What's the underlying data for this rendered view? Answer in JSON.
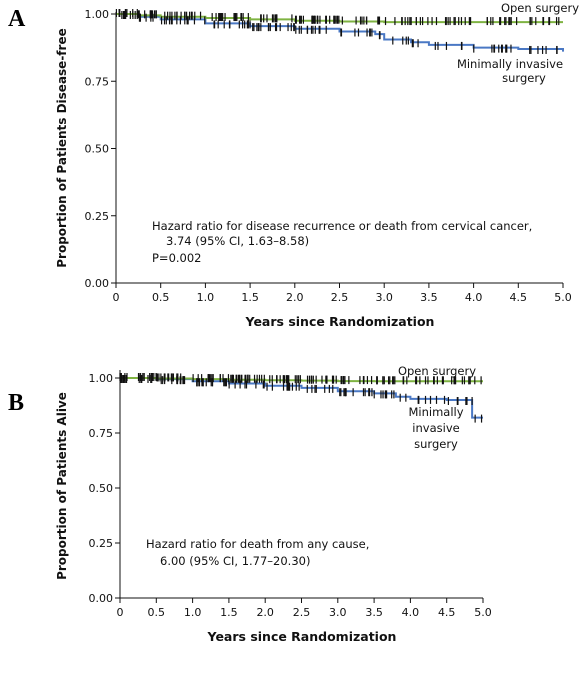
{
  "panels": [
    {
      "label": "A"
    },
    {
      "label": "B"
    }
  ],
  "colors": {
    "open": "#7fb342",
    "mis": "#4a78c4",
    "censor": "#111111"
  },
  "chart_data": [
    {
      "type": "line",
      "panel": "A",
      "xlabel": "Years since Randomization",
      "ylabel": "Proportion of Patients Disease-free",
      "xlim": [
        0,
        5
      ],
      "ylim": [
        0,
        1
      ],
      "xticks": [
        "0",
        "0.5",
        "1.0",
        "1.5",
        "2.0",
        "2.5",
        "3.0",
        "3.5",
        "4.0",
        "4.5",
        "5.0"
      ],
      "yticks": [
        "0.00",
        "0.25",
        "0.50",
        "0.75",
        "1.00"
      ],
      "grid": false,
      "annotation_lines": [
        "Hazard ratio for disease recurrence or death from cervical cancer,",
        "3.74 (95% CI, 1.63–8.58)",
        "P=0.002"
      ],
      "series_labels": [
        {
          "name": "open",
          "lines": [
            "Open surgery"
          ]
        },
        {
          "name": "mis",
          "lines": [
            "Minimally invasive",
            "surgery"
          ]
        }
      ],
      "series": [
        {
          "name": "open",
          "x": [
            0,
            0.25,
            0.5,
            1.0,
            1.5,
            2.0,
            2.5,
            3.0,
            3.5,
            4.0,
            4.5,
            5.0
          ],
          "y": [
            1.0,
            0.995,
            0.99,
            0.985,
            0.98,
            0.975,
            0.972,
            0.97,
            0.97,
            0.97,
            0.97,
            0.97
          ]
        },
        {
          "name": "mis",
          "x": [
            0,
            0.25,
            0.5,
            1.0,
            1.5,
            2.0,
            2.5,
            2.9,
            3.0,
            3.3,
            3.5,
            4.0,
            4.5,
            5.0
          ],
          "y": [
            1.0,
            0.99,
            0.98,
            0.965,
            0.955,
            0.945,
            0.935,
            0.925,
            0.905,
            0.895,
            0.885,
            0.875,
            0.87,
            0.86
          ]
        }
      ]
    },
    {
      "type": "line",
      "panel": "B",
      "xlabel": "Years since Randomization",
      "ylabel": "Proportion of Patients Alive",
      "xlim": [
        0,
        5
      ],
      "ylim": [
        0,
        1
      ],
      "xticks": [
        "0",
        "0.5",
        "1.0",
        "1.5",
        "2.0",
        "2.5",
        "3.0",
        "3.5",
        "4.0",
        "4.5",
        "5.0"
      ],
      "yticks": [
        "0.00",
        "0.25",
        "0.50",
        "0.75",
        "1.00"
      ],
      "grid": false,
      "annotation_lines": [
        "Hazard ratio for death from any cause,",
        "6.00 (95% CI, 1.77–20.30)"
      ],
      "series_labels": [
        {
          "name": "open",
          "lines": [
            "Open surgery"
          ]
        },
        {
          "name": "mis",
          "lines": [
            "Minimally",
            "invasive",
            "surgery"
          ]
        }
      ],
      "series": [
        {
          "name": "open",
          "x": [
            0,
            0.5,
            1.0,
            1.5,
            2.0,
            2.5,
            3.0,
            3.5,
            4.0,
            4.5,
            5.0
          ],
          "y": [
            1.0,
            0.998,
            0.995,
            0.992,
            0.99,
            0.988,
            0.986,
            0.985,
            0.985,
            0.985,
            0.985
          ]
        },
        {
          "name": "mis",
          "x": [
            0,
            0.5,
            1.0,
            1.5,
            2.0,
            2.5,
            3.0,
            3.5,
            3.8,
            4.0,
            4.5,
            4.8,
            4.85,
            5.0
          ],
          "y": [
            1.0,
            0.995,
            0.985,
            0.975,
            0.965,
            0.955,
            0.94,
            0.93,
            0.915,
            0.905,
            0.9,
            0.9,
            0.82,
            0.82
          ]
        }
      ]
    }
  ]
}
